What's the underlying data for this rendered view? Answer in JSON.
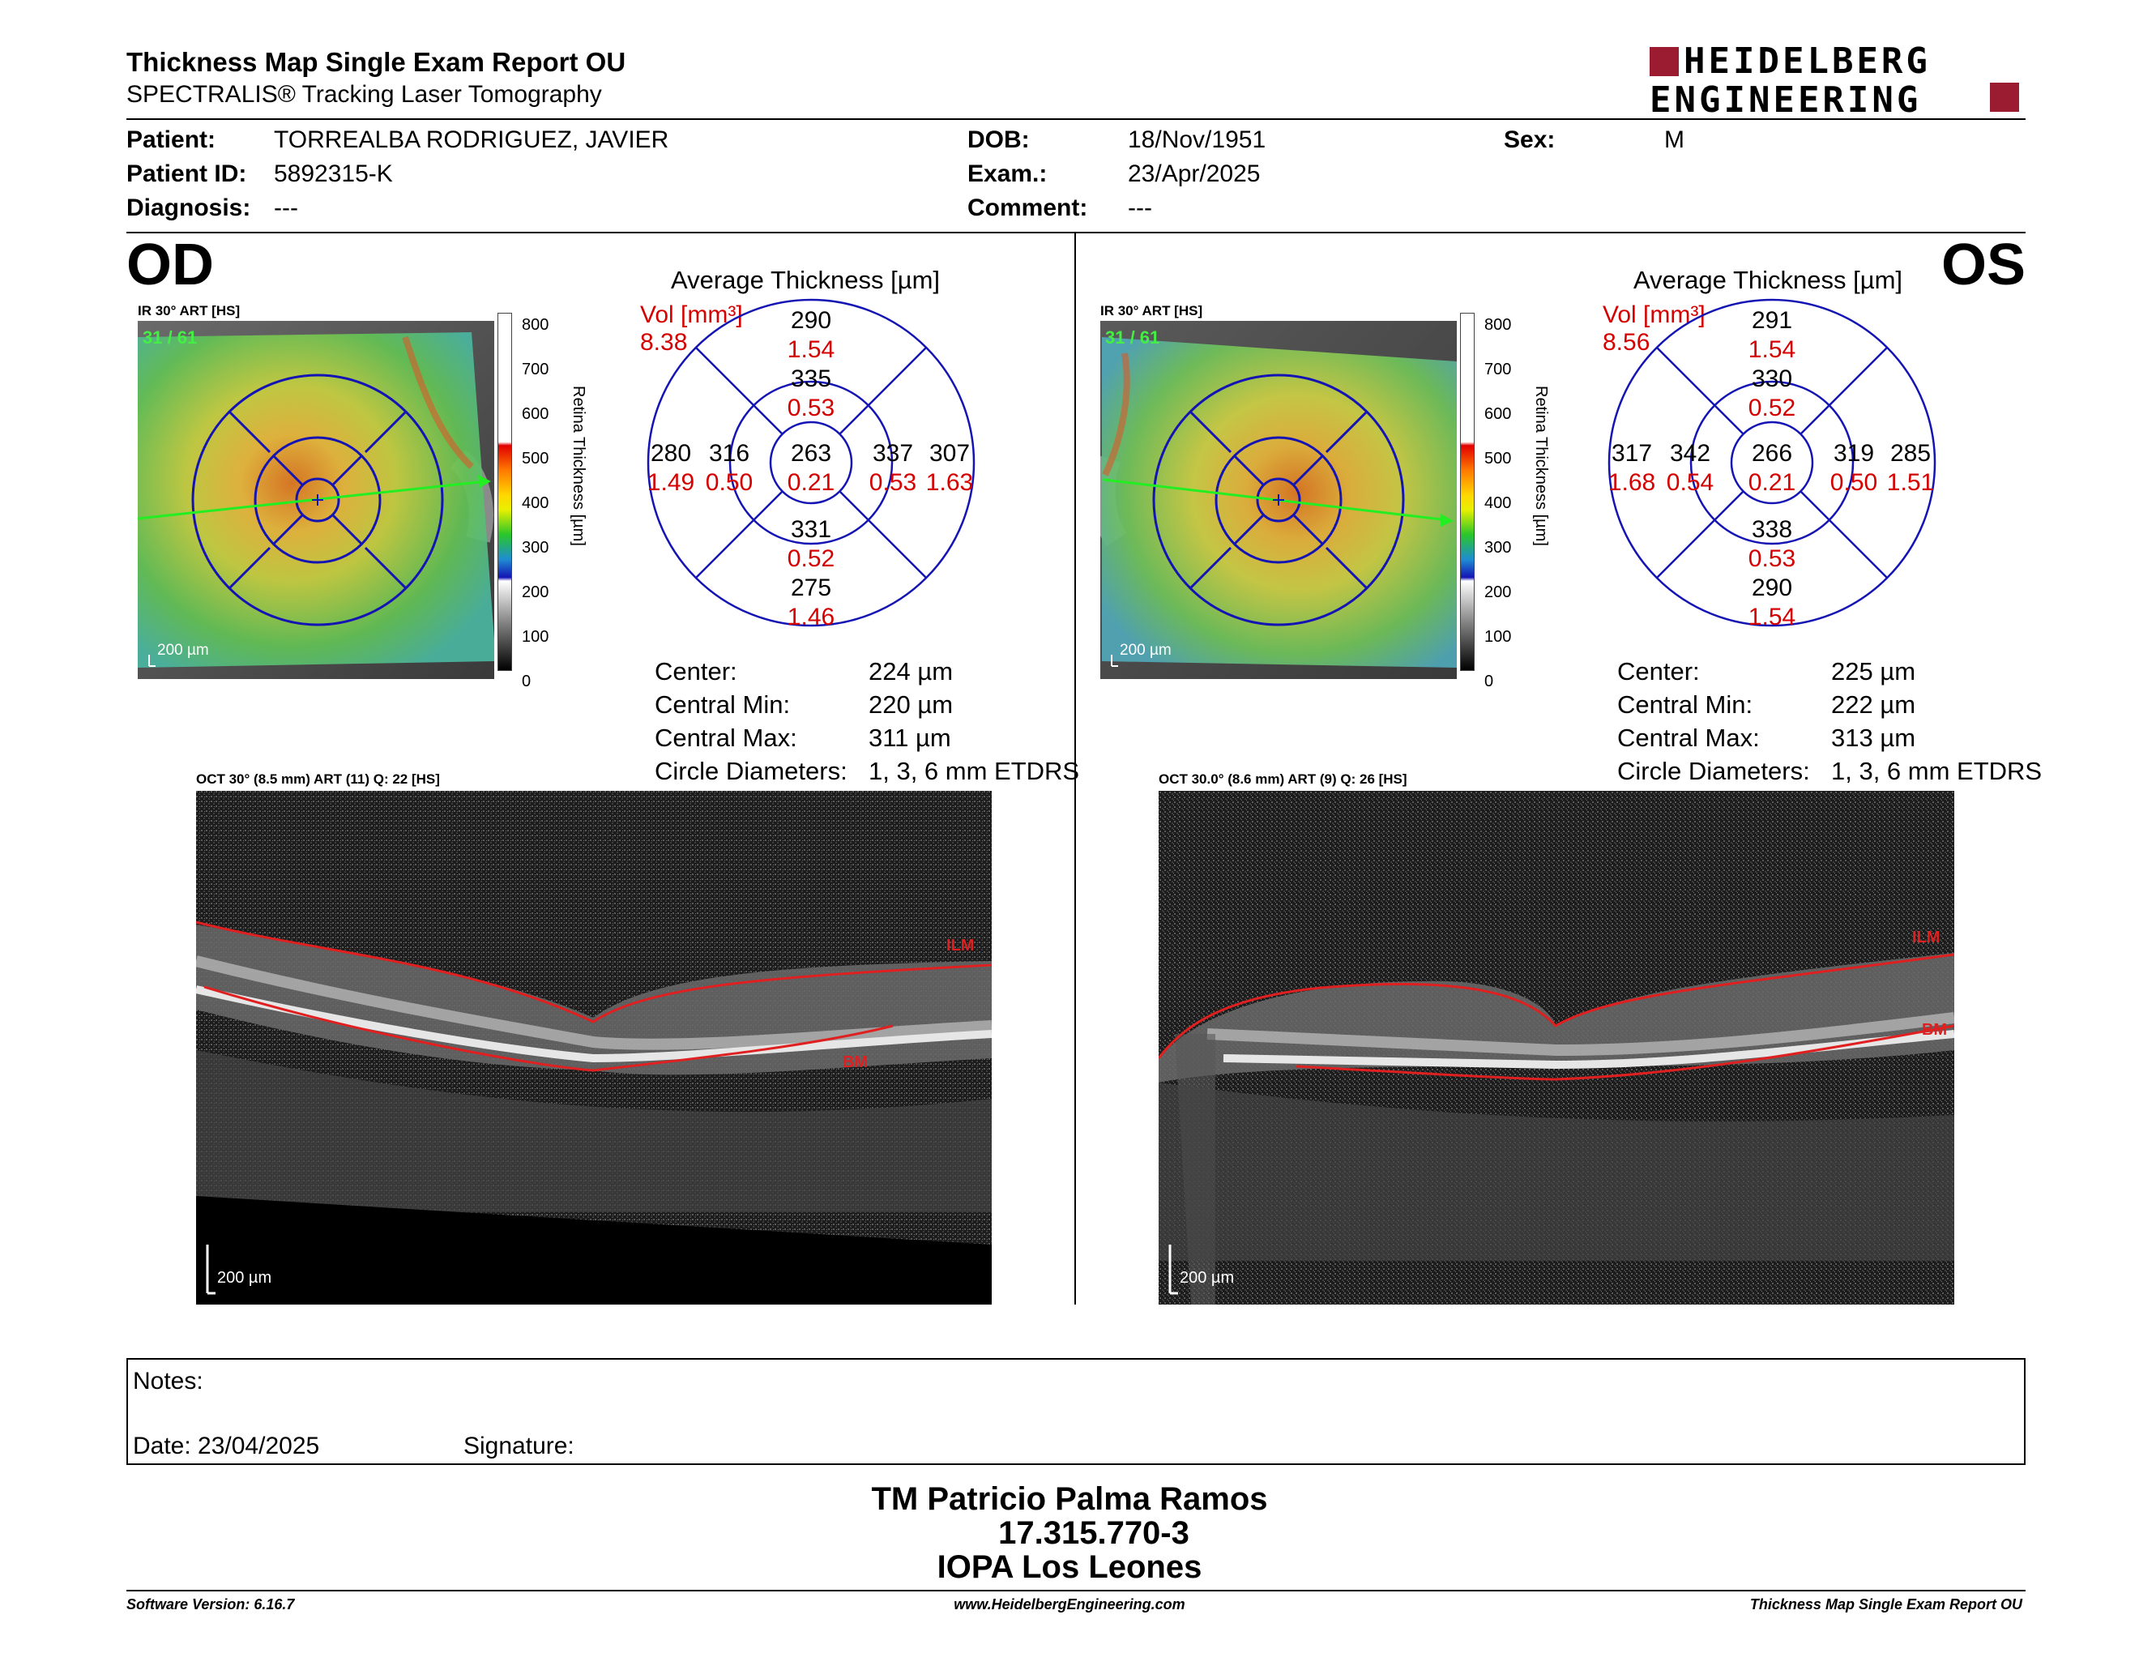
{
  "header": {
    "title": "Thickness Map Single Exam Report OU",
    "subtitle": "SPECTRALIS® Tracking Laser Tomography",
    "logo_line1": "HEIDELBERG",
    "logo_line2": "ENGINEERING"
  },
  "patient": {
    "patient_label": "Patient:",
    "patient_value": "TORREALBA RODRIGUEZ, JAVIER",
    "id_label": "Patient ID:",
    "id_value": "5892315-K",
    "diagnosis_label": "Diagnosis:",
    "diagnosis_value": "---",
    "dob_label": "DOB:",
    "dob_value": "18/Nov/1951",
    "exam_label": "Exam.:",
    "exam_value": "23/Apr/2025",
    "comment_label": "Comment:",
    "comment_value": "---",
    "sex_label": "Sex:",
    "sex_value": "M"
  },
  "od": {
    "eye": "OD",
    "ir_label": "IR 30° ART [HS]",
    "frame": "31 / 61",
    "scale": "200 µm",
    "avg_title": "Average Thickness [µm]",
    "vol_label": "Vol [mm³]",
    "vol_value": "8.38",
    "grid": {
      "top_outer": [
        "290",
        "1.54"
      ],
      "top_inner": [
        "335",
        "0.53"
      ],
      "left_outer": [
        "280",
        "1.49"
      ],
      "left_inner": [
        "316",
        "0.50"
      ],
      "center": [
        "263",
        "0.21"
      ],
      "right_inner": [
        "337",
        "0.53"
      ],
      "right_outer": [
        "307",
        "1.63"
      ],
      "bottom_inner": [
        "331",
        "0.52"
      ],
      "bottom_outer": [
        "275",
        "1.46"
      ]
    },
    "stats": [
      {
        "label": "Center:",
        "value": "224 µm"
      },
      {
        "label": "Central Min:",
        "value": "220 µm"
      },
      {
        "label": "Central Max:",
        "value": "311 µm"
      },
      {
        "label": "Circle Diameters:",
        "value": "1, 3, 6 mm ETDRS"
      }
    ],
    "oct_label": "OCT 30° (8.5 mm) ART (11) Q: 22 [HS]",
    "oct_scale": "200 µm",
    "ilm": "ILM",
    "bm": "BM"
  },
  "os": {
    "eye": "OS",
    "ir_label": "IR 30° ART [HS]",
    "frame": "31 / 61",
    "scale": "200 µm",
    "avg_title": "Average Thickness [µm]",
    "vol_label": "Vol [mm³]",
    "vol_value": "8.56",
    "grid": {
      "top_outer": [
        "291",
        "1.54"
      ],
      "top_inner": [
        "330",
        "0.52"
      ],
      "left_outer": [
        "317",
        "1.68"
      ],
      "left_inner": [
        "342",
        "0.54"
      ],
      "center": [
        "266",
        "0.21"
      ],
      "right_inner": [
        "319",
        "0.50"
      ],
      "right_outer": [
        "285",
        "1.51"
      ],
      "bottom_inner": [
        "338",
        "0.53"
      ],
      "bottom_outer": [
        "290",
        "1.54"
      ]
    },
    "stats": [
      {
        "label": "Center:",
        "value": "225 µm"
      },
      {
        "label": "Central Min:",
        "value": "222 µm"
      },
      {
        "label": "Central Max:",
        "value": "313 µm"
      },
      {
        "label": "Circle Diameters:",
        "value": "1, 3, 6 mm ETDRS"
      }
    ],
    "oct_label": "OCT 30.0° (8.6 mm) ART (9) Q: 26 [HS]",
    "oct_scale": "200 µm",
    "ilm": "ILM",
    "bm": "BM"
  },
  "colorbar": {
    "title": "Retina Thickness [µm]",
    "ticks": [
      "800",
      "700",
      "600",
      "500",
      "400",
      "300",
      "200",
      "100",
      "0"
    ]
  },
  "notes": {
    "label": "Notes:",
    "date": "Date: 23/04/2025",
    "signature": "Signature:"
  },
  "signatory": {
    "name": "TM Patricio Palma Ramos",
    "id": "17.315.770-3",
    "org": "IOPA Los Leones"
  },
  "footer": {
    "software": "Software Version: 6.16.7",
    "website": "www.HeidelbergEngineering.com",
    "report": "Thickness Map Single Exam Report OU"
  }
}
